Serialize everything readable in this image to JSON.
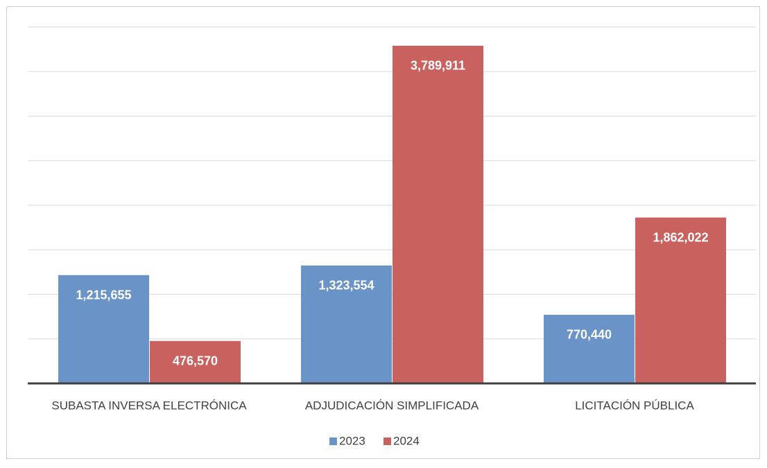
{
  "chart_data": {
    "type": "bar",
    "categories": [
      "SUBASTA INVERSA ELECTRÓNICA",
      "ADJUDICACIÓN SIMPLIFICADA",
      "LICITACIÓN PÚBLICA"
    ],
    "series": [
      {
        "name": "2023",
        "color": "#6a94c8",
        "values": [
          1215655,
          1323554,
          770440
        ],
        "value_labels": [
          "1,215,655",
          "1,323,554",
          "770,440"
        ]
      },
      {
        "name": "2024",
        "color": "#c9625f",
        "values": [
          476570,
          3789911,
          1862022
        ],
        "value_labels": [
          "476,570",
          "3,789,911",
          "1,862,022"
        ]
      }
    ],
    "ylim": [
      0,
      4000000
    ],
    "yticks": [
      0,
      500000,
      1000000,
      1500000,
      2000000,
      2500000,
      3000000,
      3500000,
      4000000
    ],
    "grid": true,
    "legend": "bottom"
  }
}
